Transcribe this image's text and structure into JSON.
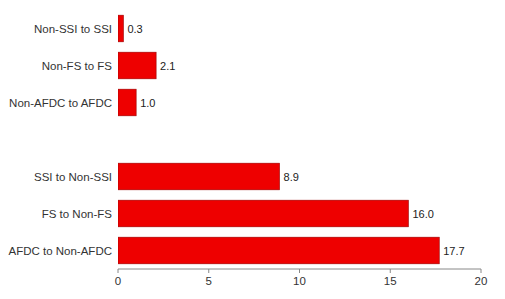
{
  "chart_data": {
    "type": "bar",
    "orientation": "horizontal",
    "categories": [
      "Non-SSI to SSI",
      "Non-FS to FS",
      "Non-AFDC to AFDC",
      null,
      "SSI to Non-SSI",
      "FS to Non-FS",
      "AFDC to Non-AFDC"
    ],
    "values": [
      0.3,
      2.1,
      1.0,
      0,
      8.9,
      16.0,
      17.7
    ],
    "value_labels": [
      "0.3",
      "2.1",
      "1.0",
      null,
      "8.9",
      "16.0",
      "17.7"
    ],
    "color": "#ee0000",
    "xlim": [
      0,
      20
    ],
    "xticks": [
      0,
      5,
      10,
      15,
      20
    ],
    "grid": false,
    "data_labels": true
  }
}
